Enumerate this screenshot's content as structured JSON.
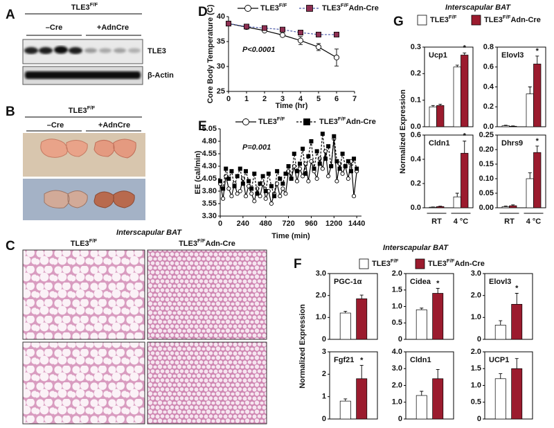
{
  "panel_labels": [
    "A",
    "B",
    "C",
    "D",
    "E",
    "F",
    "G"
  ],
  "blot": {
    "genotype": "TLE3F/F",
    "groups": [
      "–Cre",
      "+AdnCre"
    ],
    "rows": [
      "TLE3",
      "β-Actin"
    ]
  },
  "photos": {
    "genotype": "TLE3F/F",
    "groups": [
      "–Cre",
      "+AdnCre"
    ]
  },
  "histology": {
    "title": "Interscapular BAT",
    "columns": [
      "TLE3F/F",
      "TLE3F/FAdn-Cre"
    ]
  },
  "panel_g": {
    "title": "Interscapular BAT",
    "ylabel": "Normalized Expression",
    "categories": [
      "RT",
      "4 °C"
    ],
    "legend": [
      {
        "name": "TLE3F/F",
        "color": "#ffffff"
      },
      {
        "name": "TLE3F/FAdn-Cre",
        "color": "#9b1b2e"
      }
    ]
  },
  "panel_f": {
    "title": "Interscapular BAT",
    "ylabel": "Normalized Expression",
    "legend": [
      {
        "name": "TLE3F/F",
        "color": "#ffffff"
      },
      {
        "name": "TLE3F/FAdn-Cre",
        "color": "#9b1b2e"
      }
    ]
  },
  "chart_data": [
    {
      "type": "line",
      "ylabel": "Core Body Temperature (C)",
      "xlabel": "Time (hr)",
      "annotation": "P<0.0001",
      "x": [
        0,
        1,
        2,
        3,
        4,
        5,
        6
      ],
      "xlim": [
        0,
        7
      ],
      "xticks": [
        0,
        1,
        2,
        3,
        4,
        5,
        6,
        7
      ],
      "ylim": [
        25,
        40
      ],
      "yticks": [
        25,
        30,
        35,
        40
      ],
      "series": [
        {
          "name": "TLE3F/F",
          "color": "#000000",
          "marker": "circle",
          "marker_fill": "#ffffff",
          "dash": false,
          "values": [
            38.6,
            37.9,
            37.2,
            36.3,
            35.2,
            33.9,
            31.8
          ],
          "errors": [
            0.2,
            0.2,
            0.3,
            0.3,
            0.8,
            0.7,
            1.7
          ]
        },
        {
          "name": "TLE3F/FAdn-Cre",
          "color": "#4a5aa8",
          "marker": "square",
          "marker_fill": "#8e2f52",
          "dash": true,
          "values": [
            38.6,
            38.0,
            37.7,
            37.4,
            36.8,
            36.4,
            36.4
          ],
          "errors": [
            0.2,
            0.2,
            0.2,
            0.2,
            0.2,
            0.2,
            0.2
          ]
        }
      ]
    },
    {
      "type": "line",
      "ylabel": "EE (cal/min)",
      "xlabel": "Time (min)",
      "annotation": "P=0.001",
      "x": [
        0,
        30,
        60,
        90,
        120,
        150,
        180,
        210,
        240,
        270,
        300,
        330,
        360,
        390,
        420,
        450,
        480,
        510,
        540,
        570,
        600,
        630,
        660,
        690,
        720,
        750,
        780,
        810,
        840,
        870,
        900,
        930,
        960,
        990,
        1020,
        1050,
        1080,
        1110,
        1140,
        1170,
        1200,
        1230,
        1260,
        1290,
        1320,
        1350,
        1380,
        1410,
        1440
      ],
      "xlim": [
        0,
        1490
      ],
      "xticks": [
        0,
        240,
        480,
        720,
        960,
        1200,
        1440
      ],
      "ylim": [
        3.3,
        5.05
      ],
      "yticks": [
        {
          "value": 3.3,
          "label": "3.30"
        },
        3.55,
        {
          "value": 3.8,
          "label": "3.80"
        },
        4.05,
        {
          "value": 4.3,
          "label": "4.30"
        },
        4.55,
        {
          "value": 4.8,
          "label": "4.80"
        },
        5.05
      ],
      "series": [
        {
          "name": "TLE3F/F",
          "color": "#000000",
          "marker": "circle",
          "marker_fill": "#ffffff",
          "dash": false,
          "values": [
            3.95,
            3.65,
            4.1,
            3.85,
            3.7,
            3.95,
            3.75,
            3.8,
            4.05,
            3.7,
            3.9,
            3.75,
            3.6,
            3.85,
            3.7,
            3.95,
            3.65,
            3.8,
            3.55,
            3.75,
            3.95,
            3.7,
            3.85,
            3.75,
            4.2,
            4.05,
            4.3,
            4.0,
            4.25,
            4.1,
            4.35,
            4.0,
            4.4,
            4.2,
            4.05,
            4.45,
            4.25,
            4.6,
            4.1,
            4.3,
            4.85,
            4.0,
            4.35,
            4.15,
            4.3,
            4.05,
            4.4,
            3.7,
            4.2
          ]
        },
        {
          "name": "TLE3F/FAdn-Cre",
          "color": "#000000",
          "marker": "square",
          "marker_fill": "#000000",
          "dash": true,
          "values": [
            4.0,
            3.85,
            4.25,
            4.05,
            4.2,
            3.9,
            4.1,
            4.25,
            3.95,
            4.2,
            4.0,
            3.85,
            4.15,
            3.75,
            3.95,
            4.1,
            3.8,
            4.15,
            3.9,
            3.7,
            4.2,
            4.05,
            3.95,
            4.15,
            4.3,
            4.05,
            4.55,
            4.2,
            4.35,
            4.65,
            4.15,
            4.5,
            4.8,
            4.25,
            4.6,
            4.35,
            4.95,
            4.45,
            4.7,
            4.3,
            4.9,
            4.4,
            4.25,
            4.55,
            4.3,
            4.4,
            4.2,
            4.45,
            4.25
          ]
        }
      ]
    },
    {
      "type": "bar",
      "title": "Ucp1",
      "annotation": "*",
      "ylim": [
        0,
        0.3
      ],
      "yticks": [
        {
          "value": 0,
          "label": "0.0"
        },
        0.1,
        0.2,
        0.3
      ],
      "series": [
        {
          "color": "#ffffff",
          "values": [
            0.075,
            0.225
          ],
          "errors": [
            0.005,
            0.007
          ]
        },
        {
          "color": "#9b1b2e",
          "values": [
            0.08,
            0.27
          ],
          "errors": [
            0.005,
            0.008
          ]
        }
      ]
    },
    {
      "type": "bar",
      "title": "Elovl3",
      "annotation": "*",
      "ylim": [
        0,
        0.8
      ],
      "yticks": [
        {
          "value": 0,
          "label": "0.0"
        },
        0.2,
        0.4,
        0.6,
        0.8
      ],
      "series": [
        {
          "color": "#ffffff",
          "values": [
            0.01,
            0.33
          ],
          "errors": [
            0.005,
            0.07
          ]
        },
        {
          "color": "#9b1b2e",
          "values": [
            0.005,
            0.63
          ],
          "errors": [
            0.003,
            0.08
          ]
        }
      ]
    },
    {
      "type": "bar",
      "title": "Cldn1",
      "annotation": "*",
      "ylim": [
        0,
        0.6
      ],
      "yticks": [
        {
          "value": 0,
          "label": "0.0"
        },
        0.2,
        0.4,
        0.6
      ],
      "series": [
        {
          "color": "#ffffff",
          "values": [
            0.005,
            0.09
          ],
          "errors": [
            0.002,
            0.03
          ]
        },
        {
          "color": "#9b1b2e",
          "values": [
            0.01,
            0.45
          ],
          "errors": [
            0.003,
            0.1
          ]
        }
      ]
    },
    {
      "type": "bar",
      "title": "Dhrs9",
      "annotation": "*",
      "ylim": [
        0,
        0.25
      ],
      "yticks": [
        {
          "value": 0,
          "label": "0.00"
        },
        0.05,
        {
          "value": 0.1,
          "label": "0.10"
        },
        0.15,
        {
          "value": 0.2,
          "label": "0.20"
        },
        0.25
      ],
      "series": [
        {
          "color": "#ffffff",
          "values": [
            0.004,
            0.1
          ],
          "errors": [
            0.002,
            0.02
          ]
        },
        {
          "color": "#9b1b2e",
          "values": [
            0.007,
            0.19
          ],
          "errors": [
            0.003,
            0.022
          ]
        }
      ]
    },
    {
      "type": "bar",
      "title": "PGC-1α",
      "ylim": [
        0,
        3
      ],
      "yticks": [
        0,
        {
          "value": 1,
          "label": "1.0"
        },
        {
          "value": 2,
          "label": "2.0"
        },
        {
          "value": 3,
          "label": "3.0"
        }
      ],
      "series": [
        {
          "color": "#ffffff",
          "values": [
            1.2
          ],
          "errors": [
            0.08
          ]
        },
        {
          "color": "#9b1b2e",
          "values": [
            1.85
          ],
          "errors": [
            0.17
          ]
        }
      ]
    },
    {
      "type": "bar",
      "title": "Cidea",
      "annotation": "*",
      "ylim": [
        0,
        2
      ],
      "yticks": [
        0,
        0.5,
        {
          "value": 1,
          "label": "1.0"
        },
        1.5,
        {
          "value": 2,
          "label": "2.0"
        }
      ],
      "series": [
        {
          "color": "#ffffff",
          "values": [
            0.9
          ],
          "errors": [
            0.05
          ]
        },
        {
          "color": "#9b1b2e",
          "values": [
            1.4
          ],
          "errors": [
            0.15
          ]
        }
      ]
    },
    {
      "type": "bar",
      "title": "Elovl3",
      "annotation": "*",
      "ylim": [
        0,
        3
      ],
      "yticks": [
        0,
        {
          "value": 1,
          "label": "1.0"
        },
        {
          "value": 2,
          "label": "2.0"
        },
        {
          "value": 3,
          "label": "3.0"
        }
      ],
      "series": [
        {
          "color": "#ffffff",
          "values": [
            0.65
          ],
          "errors": [
            0.2
          ]
        },
        {
          "color": "#9b1b2e",
          "values": [
            1.6
          ],
          "errors": [
            0.5
          ]
        }
      ]
    },
    {
      "type": "bar",
      "title": "Fgf21",
      "annotation": "*",
      "ylim": [
        0,
        3
      ],
      "yticks": [
        0,
        1,
        2,
        3
      ],
      "series": [
        {
          "color": "#ffffff",
          "values": [
            0.8
          ],
          "errors": [
            0.1
          ]
        },
        {
          "color": "#9b1b2e",
          "values": [
            1.8
          ],
          "errors": [
            0.6
          ]
        }
      ]
    },
    {
      "type": "bar",
      "title": "Cldn1",
      "ylim": [
        0,
        4
      ],
      "yticks": [
        0,
        {
          "value": 1,
          "label": "1.0"
        },
        {
          "value": 2,
          "label": "2.0"
        },
        {
          "value": 3,
          "label": "3.0"
        },
        {
          "value": 4,
          "label": "4.0"
        }
      ],
      "series": [
        {
          "color": "#ffffff",
          "values": [
            1.4
          ],
          "errors": [
            0.25
          ]
        },
        {
          "color": "#9b1b2e",
          "values": [
            2.4
          ],
          "errors": [
            0.55
          ]
        }
      ]
    },
    {
      "type": "bar",
      "title": "UCP1",
      "ylim": [
        0,
        2
      ],
      "yticks": [
        0,
        0.5,
        {
          "value": 1,
          "label": "1.0"
        },
        1.5,
        {
          "value": 2,
          "label": "2.0"
        }
      ],
      "series": [
        {
          "color": "#ffffff",
          "values": [
            1.2
          ],
          "errors": [
            0.15
          ]
        },
        {
          "color": "#9b1b2e",
          "values": [
            1.5
          ],
          "errors": [
            0.3
          ]
        }
      ]
    }
  ]
}
